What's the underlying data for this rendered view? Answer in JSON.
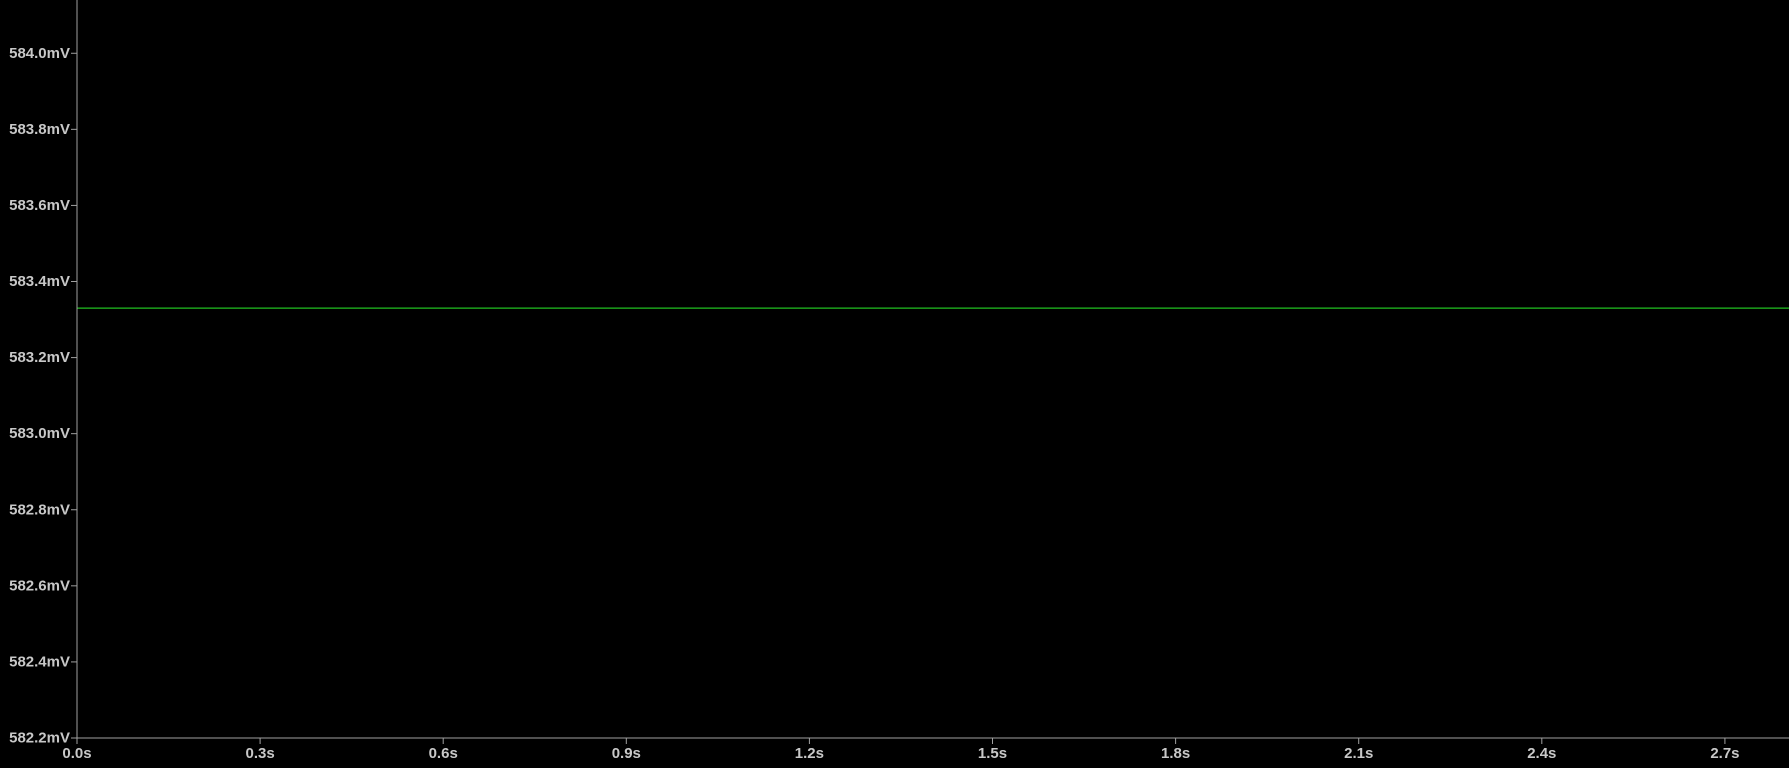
{
  "chart_data": {
    "type": "line",
    "title": "",
    "xlabel": "",
    "ylabel": "",
    "xlim": [
      0.0,
      2.805
    ],
    "ylim": [
      582.2,
      584.14
    ],
    "x_ticks": [
      0.0,
      0.3,
      0.6,
      0.9,
      1.2,
      1.5,
      1.8,
      2.1,
      2.4,
      2.7
    ],
    "x_tick_labels": [
      "0.0s",
      "0.3s",
      "0.6s",
      "0.9s",
      "1.2s",
      "1.5s",
      "1.8s",
      "2.1s",
      "2.4s",
      "2.7s"
    ],
    "y_ticks": [
      584.0,
      583.8,
      583.6,
      583.4,
      583.2,
      583.0,
      582.8,
      582.6,
      582.4,
      582.2
    ],
    "y_tick_labels": [
      "584.0mV",
      "583.8mV",
      "583.6mV",
      "583.4mV",
      "583.2mV",
      "583.0mV",
      "582.8mV",
      "582.6mV",
      "582.4mV",
      "582.2mV"
    ],
    "grid": false,
    "legend": "none",
    "series": [
      {
        "color": "#20c020",
        "x": [
          0.0,
          2.805
        ],
        "y": [
          583.33,
          583.33
        ]
      }
    ],
    "colors": {
      "background": "#000000",
      "axis": "#a0a0a0",
      "text": "#c8c8c8"
    }
  }
}
